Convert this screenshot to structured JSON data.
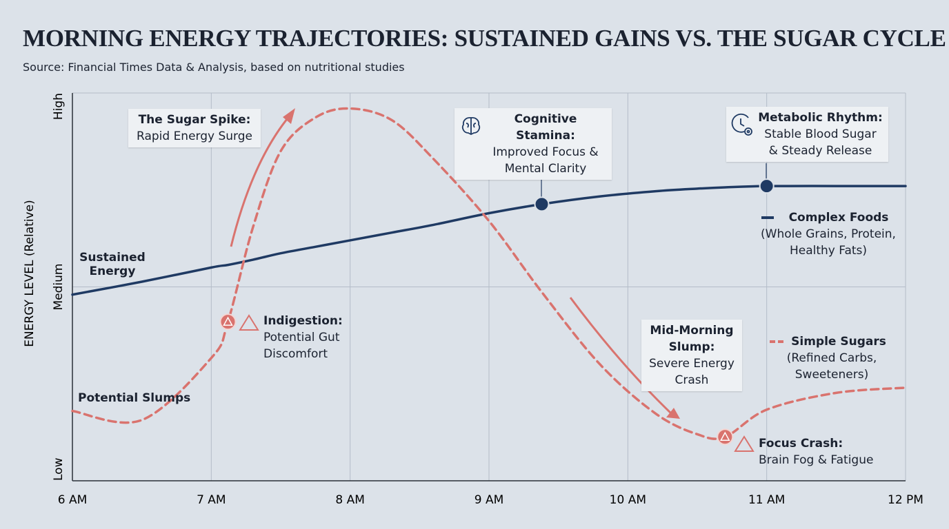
{
  "chart_data": {
    "type": "line",
    "title": "MORNING ENERGY TRAJECTORIES: SUSTAINED GAINS VS. THE SUGAR CYCLE",
    "subtitle": "Source: Financial Times Data & Analysis, based on nutritional studies",
    "y_label": "ENERGY LEVEL (Relative)",
    "x": [
      6,
      6.5,
      7,
      7.12,
      7.3,
      7.5,
      7.75,
      8,
      8.3,
      8.6,
      9,
      9.38,
      9.8,
      10.2,
      10.5,
      10.7,
      11,
      11.5,
      12
    ],
    "xlim": [
      6,
      12
    ],
    "xticks": [
      {
        "value": 6,
        "label": "6 AM"
      },
      {
        "value": 7,
        "label": "7 AM"
      },
      {
        "value": 8,
        "label": "8 AM"
      },
      {
        "value": 9,
        "label": "9 AM"
      },
      {
        "value": 10,
        "label": "10 AM"
      },
      {
        "value": 11,
        "label": "11 AM"
      },
      {
        "value": 12,
        "label": "12 PM"
      }
    ],
    "ylim": [
      0,
      3
    ],
    "yticks": [
      {
        "value": 0,
        "label": "Low"
      },
      {
        "value": 1.5,
        "label": "Medium"
      },
      {
        "value": 3,
        "label": "High"
      }
    ],
    "grid": true,
    "series": [
      {
        "name": "Complex Foods",
        "description": "(Whole Grains, Protein, Healthy Fats)",
        "label": "Sustained Energy",
        "color": "#1f3a63",
        "dashed": false,
        "values": [
          1.44,
          1.54,
          1.65,
          1.67,
          1.71,
          1.76,
          1.81,
          1.86,
          1.92,
          1.98,
          2.07,
          2.14,
          2.2,
          2.24,
          2.26,
          2.27,
          2.28,
          2.28,
          2.28
        ]
      },
      {
        "name": "Simple Sugars",
        "description": "(Refined Carbs, Sweeteners)",
        "label": "Potential Slumps",
        "color": "#d9736e",
        "dashed": true,
        "values": [
          0.54,
          0.47,
          0.95,
          1.23,
          1.96,
          2.55,
          2.81,
          2.88,
          2.79,
          2.49,
          2.01,
          1.46,
          0.9,
          0.52,
          0.36,
          0.34,
          0.55,
          0.68,
          0.72
        ]
      }
    ],
    "annotations": [
      {
        "title": "The Sugar Spike:",
        "text": "Rapid Energy Surge"
      },
      {
        "title": "Cognitive Stamina:",
        "text": "Improved Focus & Mental Clarity"
      },
      {
        "title": "Metabolic Rhythm:",
        "text": "Stable Blood Sugar & Steady Release"
      },
      {
        "title": "Indigestion:",
        "text": "Potential Gut Discomfort"
      },
      {
        "title": "Mid-Morning Slump:",
        "text": "Severe Energy Crash"
      },
      {
        "title": "Focus Crash:",
        "text": "Brain Fog & Fatigue"
      }
    ]
  }
}
